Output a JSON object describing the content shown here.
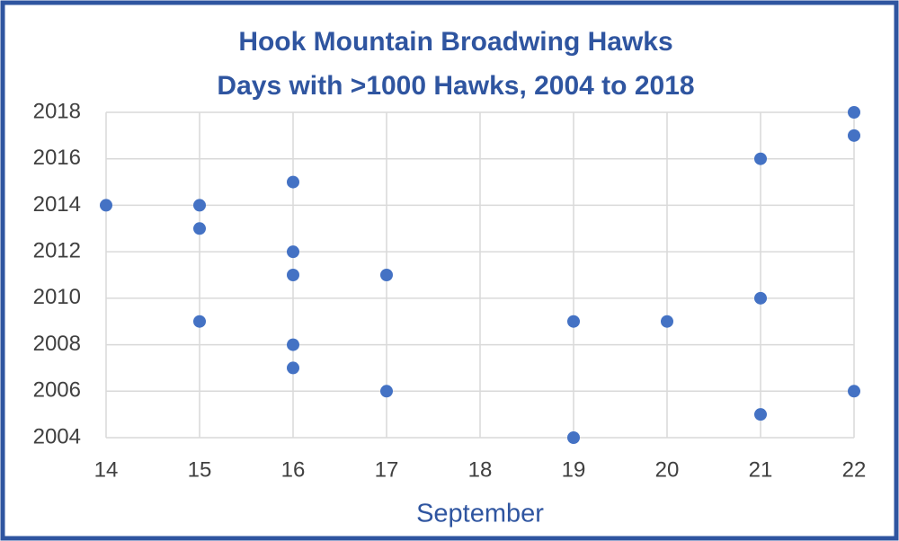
{
  "chart_data": {
    "type": "scatter",
    "title": "Hook Mountain Broadwing Hawks",
    "subtitle": "Days with >1000 Hawks, 2004 to 2018",
    "x_label": "September",
    "x": [
      14,
      15,
      15,
      15,
      16,
      16,
      16,
      16,
      16,
      17,
      17,
      19,
      19,
      20,
      21,
      21,
      21,
      22,
      22,
      22
    ],
    "values": [
      2014,
      2014,
      2013,
      2009,
      2015,
      2012,
      2011,
      2008,
      2007,
      2011,
      2006,
      2009,
      2004,
      2009,
      2016,
      2010,
      2005,
      2018,
      2017,
      2006
    ],
    "color": "#4472c4",
    "xlim": [
      14,
      22
    ],
    "xticks": [
      14,
      15,
      16,
      17,
      18,
      19,
      20,
      21,
      22
    ],
    "ylim": [
      2004,
      2018
    ],
    "yticks": [
      2004,
      2006,
      2008,
      2010,
      2012,
      2014,
      2016,
      2018
    ],
    "grid": true
  }
}
